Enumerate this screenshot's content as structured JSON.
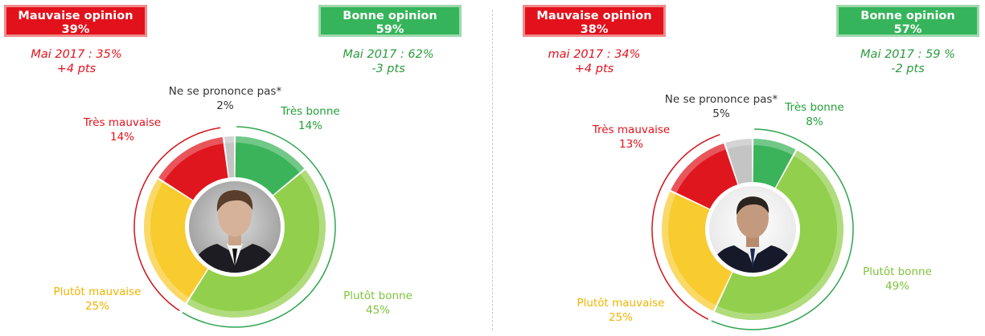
{
  "chart_data": [
    {
      "type": "pie",
      "categories": [
        "Très bonne",
        "Plutôt bonne",
        "Plutôt mauvaise",
        "Très mauvaise",
        "Ne se prononce pas*"
      ],
      "values": [
        14,
        45,
        25,
        14,
        2
      ],
      "value_labels": [
        "14%",
        "45%",
        "25%",
        "14%",
        "2%"
      ],
      "colors": [
        "#3bb35a",
        "#92cf4c",
        "#f8cb2e",
        "#e0161e",
        "#c4c4c4"
      ],
      "bad_opinion": {
        "label": "Mauvaise opinion",
        "value": "39%",
        "comparison": "Mai 2017 : 35%",
        "change": "+4 pts"
      },
      "good_opinion": {
        "label": "Bonne opinion",
        "value": "59%",
        "comparison": "Mai 2017 : 62%",
        "change": "-3 pts"
      }
    },
    {
      "type": "pie",
      "categories": [
        "Très bonne",
        "Plutôt bonne",
        "Plutôt mauvaise",
        "Très mauvaise",
        "Ne se prononce pas*"
      ],
      "values": [
        8,
        49,
        25,
        13,
        5
      ],
      "value_labels": [
        "8%",
        "49%",
        "25%",
        "13%",
        "5%"
      ],
      "colors": [
        "#3bb35a",
        "#92cf4c",
        "#f8cb2e",
        "#e0161e",
        "#c4c4c4"
      ],
      "bad_opinion": {
        "label": "Mauvaise opinion",
        "value": "38%",
        "comparison": "mai 2017 : 34%",
        "change": "+4 pts"
      },
      "good_opinion": {
        "label": "Bonne opinion",
        "value": "57%",
        "comparison": "Mai 2017 : 59 %",
        "change": "-2 pts"
      }
    }
  ]
}
